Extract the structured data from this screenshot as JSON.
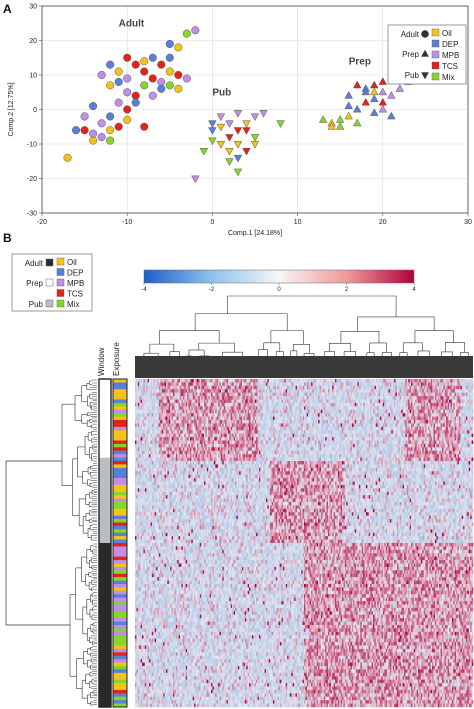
{
  "panel_a_letter": "A",
  "panel_b_letter": "B",
  "colors": {
    "Oil": "#f5c218",
    "DEP": "#5b7fd6",
    "MPB": "#c08ee6",
    "TCS": "#e3231a",
    "Mix": "#86d62a",
    "adult_bar": "#2a2a2a",
    "prep_bar": "#ffffff",
    "pub_bar": "#b9bec2"
  },
  "chart_data": [
    {
      "type": "scatter",
      "title": "",
      "xlabel": "Comp.1 [24.18%]",
      "ylabel": "Comp.2 [12.75%]",
      "xlim": [
        -20,
        30
      ],
      "ylim": [
        -30,
        30
      ],
      "xticks": [
        "-20",
        "-10",
        "0",
        "10",
        "20",
        "30"
      ],
      "yticks": [
        "-30",
        "-20",
        "-10",
        "0",
        "10",
        "20",
        "30"
      ],
      "grid": true,
      "legend_position": "top-right",
      "window_legend": [
        {
          "label": "Adult",
          "marker": "circle"
        },
        {
          "label": "Prep",
          "marker": "triangle-up"
        },
        {
          "label": "Pub",
          "marker": "triangle-down"
        }
      ],
      "exposure_legend": [
        "Oil",
        "DEP",
        "MPB",
        "TCS",
        "Mix"
      ],
      "group_labels": [
        {
          "text": "Adult",
          "x": -11,
          "y": 24
        },
        {
          "text": "Pub",
          "x": 0,
          "y": 4
        },
        {
          "text": "Prep",
          "x": 16,
          "y": 13
        }
      ],
      "series": [
        {
          "name": "Adult",
          "marker": "circle",
          "points": [
            {
              "x": -17,
              "y": -14,
              "g": "Oil"
            },
            {
              "x": -16,
              "y": -6,
              "g": "DEP"
            },
            {
              "x": -15,
              "y": -2,
              "g": "MPB"
            },
            {
              "x": -14,
              "y": -9,
              "g": "Oil"
            },
            {
              "x": -13,
              "y": -8,
              "g": "MPB"
            },
            {
              "x": -12,
              "y": -6,
              "g": "Oil"
            },
            {
              "x": -12,
              "y": -9,
              "g": "Mix"
            },
            {
              "x": -11,
              "y": -5,
              "g": "TCS"
            },
            {
              "x": -10,
              "y": -3,
              "g": "Oil"
            },
            {
              "x": -13,
              "y": -4,
              "g": "MPB"
            },
            {
              "x": -14,
              "y": 1,
              "g": "DEP"
            },
            {
              "x": -11,
              "y": 2,
              "g": "MPB"
            },
            {
              "x": -12,
              "y": 7,
              "g": "Oil"
            },
            {
              "x": -11,
              "y": 8,
              "g": "DEP"
            },
            {
              "x": -10,
              "y": 9,
              "g": "MPB"
            },
            {
              "x": -9,
              "y": 4,
              "g": "TCS"
            },
            {
              "x": -10,
              "y": 0,
              "g": "TCS"
            },
            {
              "x": -8,
              "y": 7,
              "g": "Mix"
            },
            {
              "x": -9,
              "y": 2,
              "g": "DEP"
            },
            {
              "x": -8,
              "y": -5,
              "g": "TCS"
            },
            {
              "x": -7,
              "y": 9,
              "g": "TCS"
            },
            {
              "x": -6,
              "y": 8,
              "g": "MPB"
            },
            {
              "x": -5,
              "y": 11,
              "g": "Oil"
            },
            {
              "x": -5,
              "y": 7,
              "g": "Mix"
            },
            {
              "x": -6,
              "y": 13,
              "g": "TCS"
            },
            {
              "x": -5,
              "y": 15,
              "g": "DEP"
            },
            {
              "x": -4,
              "y": 18,
              "g": "Oil"
            },
            {
              "x": -3,
              "y": 22,
              "g": "Mix"
            },
            {
              "x": -4,
              "y": 10,
              "g": "TCS"
            },
            {
              "x": -3,
              "y": 9,
              "g": "MPB"
            },
            {
              "x": -7,
              "y": 15,
              "g": "DEP"
            },
            {
              "x": -8,
              "y": 14,
              "g": "Oil"
            },
            {
              "x": -9,
              "y": 13,
              "g": "TCS"
            },
            {
              "x": -10,
              "y": 15,
              "g": "TCS"
            },
            {
              "x": -11,
              "y": 11,
              "g": "Oil"
            },
            {
              "x": -12,
              "y": 13,
              "g": "DEP"
            },
            {
              "x": -13,
              "y": 10,
              "g": "MPB"
            },
            {
              "x": -7,
              "y": 4,
              "g": "MPB"
            },
            {
              "x": -6,
              "y": 6,
              "g": "DEP"
            },
            {
              "x": -4,
              "y": 6,
              "g": "Oil"
            },
            {
              "x": -5,
              "y": 19,
              "g": "DEP"
            },
            {
              "x": -2,
              "y": 23,
              "g": "MPB"
            },
            {
              "x": -14,
              "y": -7,
              "g": "MPB"
            },
            {
              "x": -12,
              "y": -2,
              "g": "DEP"
            },
            {
              "x": -15,
              "y": -6,
              "g": "TCS"
            },
            {
              "x": -10,
              "y": 5,
              "g": "MPB"
            },
            {
              "x": -8,
              "y": 11,
              "g": "TCS"
            }
          ]
        },
        {
          "name": "Pub",
          "marker": "triangle-down",
          "points": [
            {
              "x": -1,
              "y": -12,
              "g": "Mix"
            },
            {
              "x": 0,
              "y": -9,
              "g": "Mix"
            },
            {
              "x": 0,
              "y": -6,
              "g": "DEP"
            },
            {
              "x": 1,
              "y": -2,
              "g": "MPB"
            },
            {
              "x": 1,
              "y": -10,
              "g": "Oil"
            },
            {
              "x": 2,
              "y": -8,
              "g": "TCS"
            },
            {
              "x": 2,
              "y": -4,
              "g": "MPB"
            },
            {
              "x": 3,
              "y": -1,
              "g": "MPB"
            },
            {
              "x": 3,
              "y": -10,
              "g": "Oil"
            },
            {
              "x": 4,
              "y": -6,
              "g": "TCS"
            },
            {
              "x": 4,
              "y": -12,
              "g": "TCS"
            },
            {
              "x": 2,
              "y": -15,
              "g": "Mix"
            },
            {
              "x": 3,
              "y": -18,
              "g": "Mix"
            },
            {
              "x": 1,
              "y": -5,
              "g": "Oil"
            },
            {
              "x": 5,
              "y": -8,
              "g": "Mix"
            },
            {
              "x": 5,
              "y": -2,
              "g": "MPB"
            },
            {
              "x": 6,
              "y": -1,
              "g": "MPB"
            },
            {
              "x": 3,
              "y": -14,
              "g": "DEP"
            },
            {
              "x": 2,
              "y": -12,
              "g": "Oil"
            },
            {
              "x": 4,
              "y": -4,
              "g": "Oil"
            },
            {
              "x": 0,
              "y": -4,
              "g": "DEP"
            },
            {
              "x": 3,
              "y": -6,
              "g": "TCS"
            },
            {
              "x": 5,
              "y": -10,
              "g": "Oil"
            },
            {
              "x": 8,
              "y": -4,
              "g": "Mix"
            },
            {
              "x": -2,
              "y": -20,
              "g": "MPB"
            }
          ]
        },
        {
          "name": "Prep",
          "marker": "triangle-up",
          "points": [
            {
              "x": 13,
              "y": -3,
              "g": "Mix"
            },
            {
              "x": 14,
              "y": -4,
              "g": "Oil"
            },
            {
              "x": 15,
              "y": -3,
              "g": "Mix"
            },
            {
              "x": 14,
              "y": -5,
              "g": "Oil"
            },
            {
              "x": 15,
              "y": -5,
              "g": "Mix"
            },
            {
              "x": 16,
              "y": -2,
              "g": "Oil"
            },
            {
              "x": 16,
              "y": 1,
              "g": "DEP"
            },
            {
              "x": 17,
              "y": 0,
              "g": "DEP"
            },
            {
              "x": 17,
              "y": -4,
              "g": "Mix"
            },
            {
              "x": 18,
              "y": 2,
              "g": "TCS"
            },
            {
              "x": 19,
              "y": 3,
              "g": "DEP"
            },
            {
              "x": 19,
              "y": -1,
              "g": "DEP"
            },
            {
              "x": 20,
              "y": 5,
              "g": "MPB"
            },
            {
              "x": 20,
              "y": 2,
              "g": "TCS"
            },
            {
              "x": 21,
              "y": 4,
              "g": "MPB"
            },
            {
              "x": 21,
              "y": -2,
              "g": "DEP"
            },
            {
              "x": 19,
              "y": 7,
              "g": "TCS"
            },
            {
              "x": 18,
              "y": 6,
              "g": "DEP"
            },
            {
              "x": 20,
              "y": 8,
              "g": "TCS"
            },
            {
              "x": 22,
              "y": 6,
              "g": "MPB"
            },
            {
              "x": 23,
              "y": 8,
              "g": "MPB"
            },
            {
              "x": 17,
              "y": 7,
              "g": "TCS"
            },
            {
              "x": 18,
              "y": 5,
              "g": "DEP"
            },
            {
              "x": 16,
              "y": 4,
              "g": "DEP"
            },
            {
              "x": 20,
              "y": 0,
              "g": "MPB"
            },
            {
              "x": 19,
              "y": 5,
              "g": "Oil"
            }
          ]
        }
      ]
    },
    {
      "type": "heatmap",
      "title": "",
      "colorbar_ticks": [
        "-4",
        "-2",
        "0",
        "2",
        "4"
      ],
      "colorbar_range": [
        -4,
        4
      ],
      "annotation_columns": [
        "Window",
        "Exposure"
      ],
      "window_legend": [
        {
          "label": "Adult",
          "color": "#2a2a2a"
        },
        {
          "label": "Prep",
          "color": "#ffffff"
        },
        {
          "label": "Pub",
          "color": "#b9bec2"
        }
      ],
      "exposure_legend": [
        "Oil",
        "DEP",
        "MPB",
        "TCS",
        "Mix"
      ],
      "window_blocks": [
        {
          "group": "Prep",
          "fraction": 0.24
        },
        {
          "group": "Pub",
          "fraction": 0.26
        },
        {
          "group": "Adult",
          "fraction": 0.5
        }
      ],
      "row_count": 96,
      "column_count": 240,
      "row_cluster_enrichment": [
        {
          "rows": "Prep",
          "high_columns": [
            "0.07-0.36",
            "0.80-0.96"
          ]
        },
        {
          "rows": "Pub",
          "high_columns": [
            "0.40-0.62"
          ]
        },
        {
          "rows": "Adult",
          "high_columns": [
            "0.50-1.00"
          ]
        }
      ]
    }
  ]
}
